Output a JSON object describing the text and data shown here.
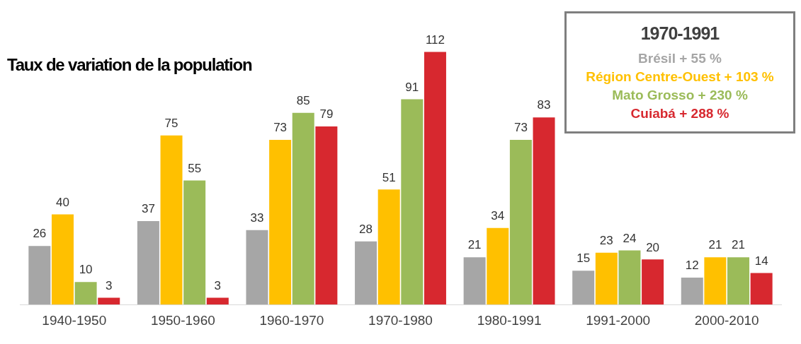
{
  "chart_data": {
    "type": "bar",
    "title": "Taux de variation de la population",
    "legend_title": "1970-1991",
    "legend": "top right",
    "data_labels": true,
    "grid": false,
    "categories": [
      "1940-1950",
      "1950-1960",
      "1960-1970",
      "1970-1980",
      "1980-1991",
      "1991-2000",
      "2000-2010"
    ],
    "series": [
      {
        "name": "Brésil + 55 %",
        "color": "#a6a6a6",
        "values": [
          26,
          37,
          33,
          28,
          21,
          15,
          12
        ]
      },
      {
        "name": "Région Centre-Ouest + 103 %",
        "color": "#ffc000",
        "values": [
          40,
          75,
          73,
          51,
          34,
          23,
          21
        ]
      },
      {
        "name": "Mato Grosso + 230 %",
        "color": "#9bbb59",
        "values": [
          10,
          55,
          85,
          91,
          73,
          24,
          21
        ]
      },
      {
        "name": "Cuiabá + 288 %",
        "color": "#d7282f",
        "values": [
          3,
          3,
          79,
          112,
          83,
          20,
          14
        ]
      }
    ]
  }
}
